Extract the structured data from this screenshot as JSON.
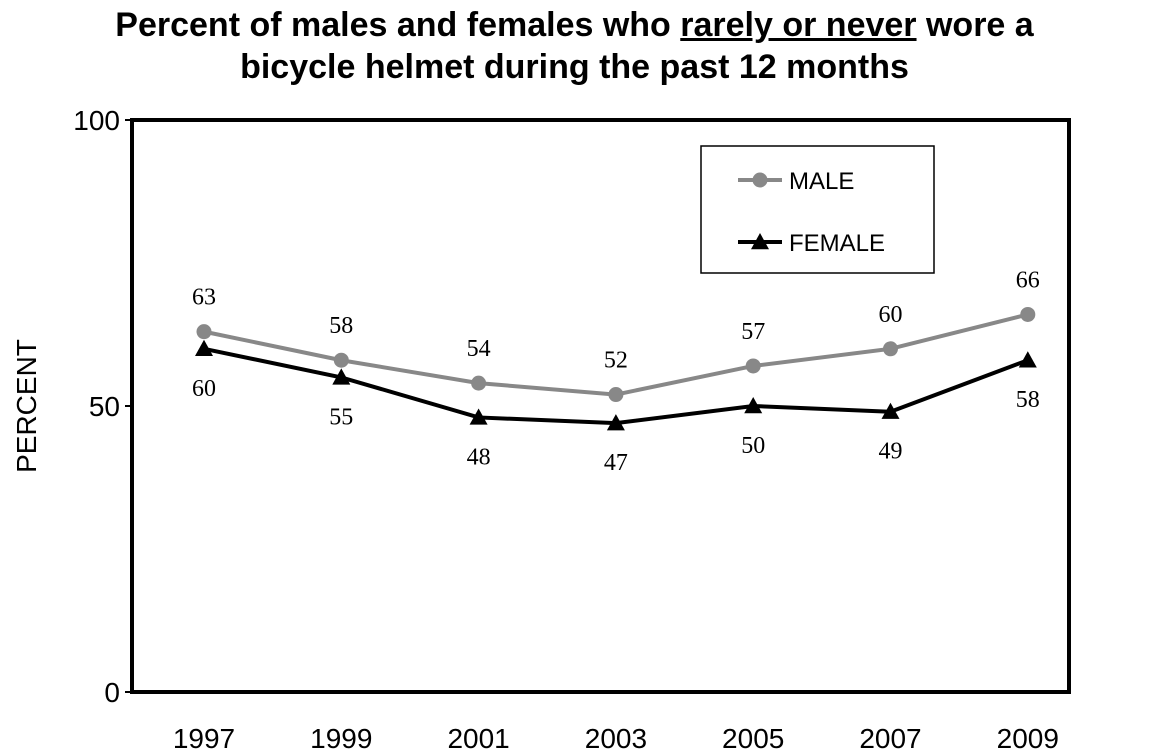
{
  "chart_data": {
    "type": "line",
    "title_part1": "Percent of males and females who ",
    "title_underlined": "rarely or never",
    "title_part2": " wore a",
    "title_line2": "bicycle helmet during the past 12 months",
    "ylabel": "PERCENT",
    "xlabel": "",
    "ylim": [
      0,
      100
    ],
    "yticks": [
      "0",
      "50",
      "100"
    ],
    "categories": [
      "1997",
      "1999",
      "2001",
      "2003",
      "2005",
      "2007",
      "2009"
    ],
    "series": [
      {
        "name": "MALE",
        "values": [
          63,
          58,
          54,
          52,
          57,
          60,
          66
        ],
        "color": "#888888",
        "marker": "circle",
        "label_position": "above"
      },
      {
        "name": "FEMALE",
        "values": [
          60,
          55,
          48,
          47,
          50,
          49,
          58
        ],
        "color": "#000000",
        "marker": "triangle",
        "label_position": "below"
      }
    ],
    "legend_position": "top-right",
    "grid": false
  }
}
